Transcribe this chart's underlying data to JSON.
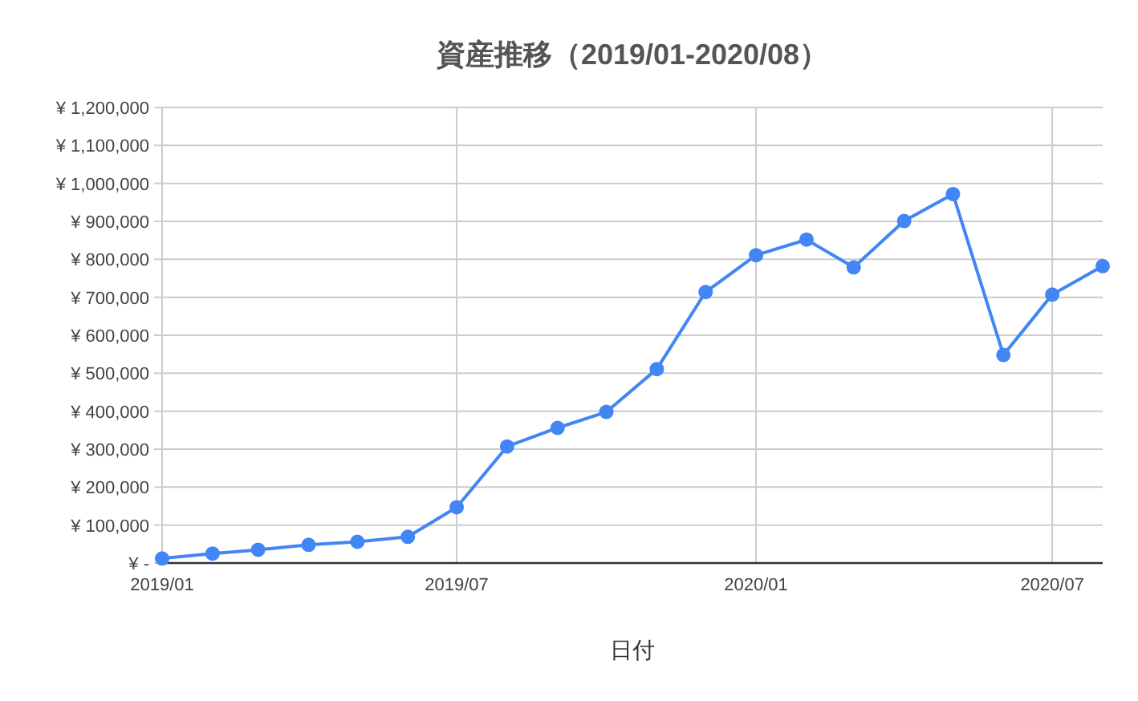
{
  "chart_data": {
    "type": "line",
    "title": "資産推移（2019/01-2020/08）",
    "xlabel": "日付",
    "x": [
      "2019-01",
      "2019-02",
      "2019-03",
      "2019-04",
      "2019-05",
      "2019-06",
      "2019-07",
      "2019-08",
      "2019-09",
      "2019-10",
      "2019-11",
      "2019-12",
      "2020-01",
      "2020-02",
      "2020-03",
      "2020-04",
      "2020-05",
      "2020-06",
      "2020-07",
      "2020-08"
    ],
    "series": [
      {
        "color": "#4285f4",
        "values": [
          12000,
          25000,
          35000,
          48000,
          56000,
          69000,
          147000,
          307000,
          356000,
          398000,
          511000,
          714000,
          811000,
          852000,
          779000,
          901000,
          972000,
          548000,
          707000,
          782000
        ]
      }
    ],
    "xlim": [
      "2019-01",
      "2020-08"
    ],
    "xticks": [
      {
        "value": "2019-01",
        "label": "2019/01"
      },
      {
        "value": "2019-07",
        "label": "2019/07"
      },
      {
        "value": "2020-01",
        "label": "2020/01"
      },
      {
        "value": "2020-07",
        "label": "2020/07"
      }
    ],
    "ylim": [
      0,
      1200000
    ],
    "yticks": [
      {
        "value": 0,
        "label": "¥ -"
      },
      {
        "value": 100000,
        "label": "¥ 100,000"
      },
      {
        "value": 200000,
        "label": "¥ 200,000"
      },
      {
        "value": 300000,
        "label": "¥ 300,000"
      },
      {
        "value": 400000,
        "label": "¥ 400,000"
      },
      {
        "value": 500000,
        "label": "¥ 500,000"
      },
      {
        "value": 600000,
        "label": "¥ 600,000"
      },
      {
        "value": 700000,
        "label": "¥ 700,000"
      },
      {
        "value": 800000,
        "label": "¥ 800,000"
      },
      {
        "value": 900000,
        "label": "¥ 900,000"
      },
      {
        "value": 1000000,
        "label": "¥ 1,000,000"
      },
      {
        "value": 1100000,
        "label": "¥ 1,100,000"
      },
      {
        "value": 1200000,
        "label": "¥ 1,200,000"
      }
    ],
    "grid": true,
    "marker": "circle",
    "line_style": "solid"
  }
}
